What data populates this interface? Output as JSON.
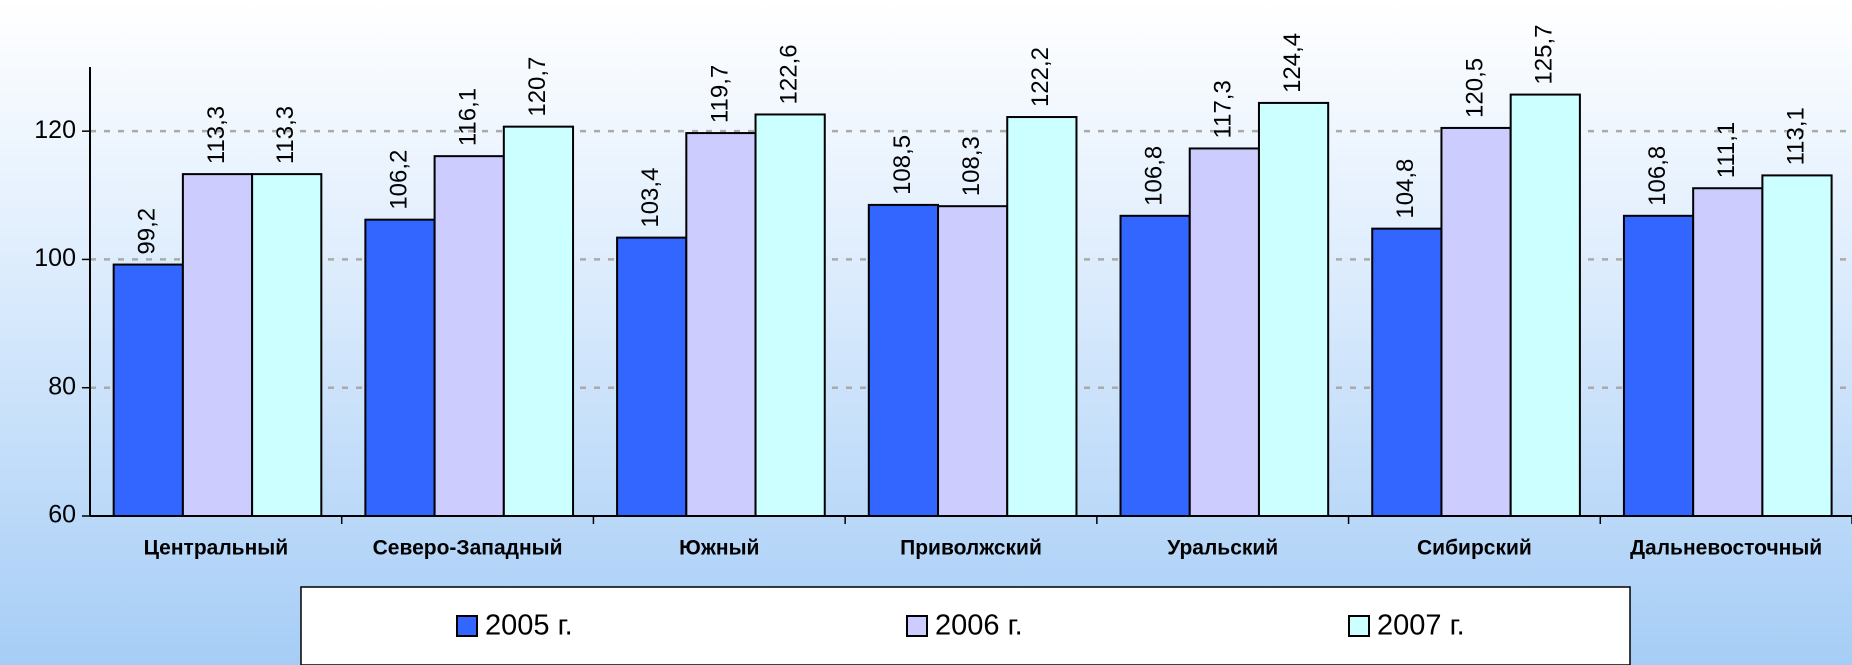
{
  "chart_data": {
    "type": "bar",
    "categories": [
      "Центральный",
      "Северо-Западный",
      "Южный",
      "Приволжский",
      "Уральский",
      "Сибирский",
      "Дальневосточный"
    ],
    "series": [
      {
        "name": "2005 г.",
        "color": "#3366ff",
        "values": [
          99.2,
          106.2,
          103.4,
          108.5,
          106.8,
          104.8,
          106.8
        ],
        "value_labels": [
          "99,2",
          "106,2",
          "103,4",
          "108,5",
          "106,8",
          "104,8",
          "106,8"
        ]
      },
      {
        "name": "2006 г.",
        "color": "#ccccff",
        "values": [
          113.3,
          116.1,
          119.7,
          108.3,
          117.3,
          120.5,
          111.1
        ],
        "value_labels": [
          "113,3",
          "116,1",
          "119,7",
          "108,3",
          "117,3",
          "120,5",
          "111,1"
        ]
      },
      {
        "name": "2007 г.",
        "color": "#ccffff",
        "values": [
          113.3,
          120.7,
          122.6,
          122.2,
          124.4,
          125.7,
          113.1
        ],
        "value_labels": [
          "113,3",
          "120,7",
          "122,6",
          "122,2",
          "124,4",
          "125,7",
          "113,1"
        ]
      }
    ],
    "ylim": [
      60,
      130
    ],
    "yticks": [
      60,
      80,
      100,
      120
    ],
    "grid": true,
    "legend": "bottom"
  }
}
